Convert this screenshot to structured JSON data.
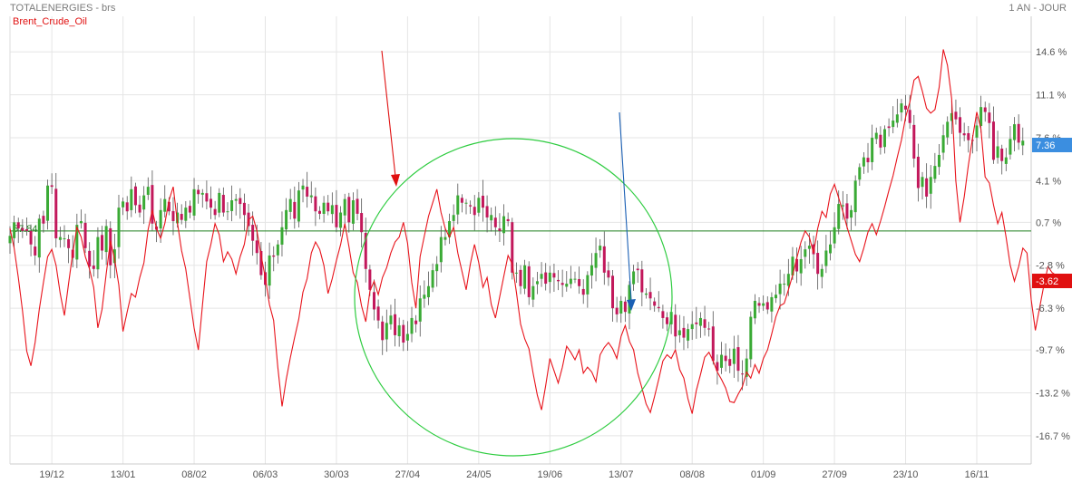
{
  "header": {
    "title_left": "TOTALENERGIES - brs",
    "title_right": "1 AN - JOUR",
    "series_label": "Brent_Crude_Oil"
  },
  "colors": {
    "series_line": "#e8141c",
    "candle_up": "#3aaa35",
    "candle_down": "#c2185b",
    "reference_line": "#1e7f1e",
    "grid": "#e5e5e5",
    "circle": "#2ecc40",
    "arrow_red": "#e01010",
    "arrow_blue": "#1a5fb4",
    "badge_last": "#3b8ee0",
    "badge_series": "#e01010"
  },
  "chart_data": {
    "type": "line",
    "title": "TOTALENERGIES - brs",
    "period": "1 AN - JOUR",
    "ylim": [
      -19.0,
      17.5
    ],
    "y_ticks": [
      14.6,
      11.1,
      7.6,
      4.1,
      0.7,
      -2.8,
      -6.3,
      -9.7,
      -13.2,
      -16.7
    ],
    "y_tick_labels": [
      "14.6 %",
      "11.1 %",
      "7.6 %",
      "4.1 %",
      "0.7 %",
      "-2.8 %",
      "-6.3 %",
      "-9.7 %",
      "-13.2 %",
      "-16.7 %"
    ],
    "x_ticks": [
      "19/12",
      "13/01",
      "08/02",
      "06/03",
      "30/03",
      "27/04",
      "24/05",
      "19/06",
      "13/07",
      "08/08",
      "01/09",
      "27/09",
      "23/10",
      "16/11"
    ],
    "x_tick_positions": [
      10,
      27,
      44,
      61,
      78,
      95,
      112,
      129,
      146,
      163,
      180,
      197,
      214,
      231
    ],
    "x_max": 244,
    "reference_level": 0.0,
    "reference_label": "57.84",
    "last_values": {
      "TOTALENERGIES": "7.36",
      "Brent_Crude_Oil": "-3.62"
    },
    "series": [
      {
        "name": "TOTALENERGIES",
        "style": "candlestick",
        "close": [
          -0.4,
          0.7,
          0.2,
          0.0,
          0.0,
          -1.1,
          -2.0,
          1.0,
          0.6,
          3.7,
          3.6,
          -0.6,
          -0.5,
          -0.6,
          -1.4,
          -2.2,
          0.5,
          0.8,
          -1.4,
          -2.9,
          -3.1,
          -0.5,
          -1.6,
          0.4,
          -2.8,
          -1.5,
          1.9,
          2.4,
          1.6,
          3.4,
          2.1,
          1.5,
          2.9,
          3.6,
          0.6,
          0.1,
          1.7,
          2.6,
          1.6,
          0.8,
          1.5,
          0.9,
          1.9,
          1.5,
          3.4,
          3.0,
          3.1,
          2.4,
          1.9,
          1.3,
          3.1,
          1.5,
          1.6,
          2.5,
          2.6,
          2.2,
          1.3,
          0.4,
          -0.8,
          -1.8,
          -3.6,
          -4.4,
          -2.0,
          -2.1,
          -1.1,
          0.3,
          1.7,
          2.6,
          1.0,
          3.3,
          3.7,
          2.8,
          2.9,
          1.6,
          1.4,
          2.3,
          1.6,
          2.1,
          0.3,
          1.5,
          2.6,
          0.7,
          2.5,
          1.4,
          -0.1,
          -3.1,
          -4.8,
          -6.4,
          -7.3,
          -8.9,
          -7.5,
          -6.9,
          -8.5,
          -7.7,
          -9.1,
          -8.4,
          -7.1,
          -7.6,
          -5.5,
          -5.2,
          -4.5,
          -3.2,
          -2.7,
          -0.5,
          -0.5,
          0.8,
          1.3,
          2.9,
          2.3,
          2.3,
          2.0,
          1.3,
          2.7,
          1.9,
          1.1,
          1.3,
          0.3,
          0.0,
          1.2,
          0.8,
          -3.4,
          -3.4,
          -4.5,
          -2.8,
          -5.4,
          -4.5,
          -4.1,
          -3.5,
          -4.3,
          -3.4,
          -3.8,
          -4.1,
          -4.4,
          -4.3,
          -3.9,
          -3.9,
          -4.5,
          -5.2,
          -3.6,
          -2.8,
          -1.8,
          -1.2,
          -3.4,
          -3.8,
          -6.3,
          -6.8,
          -5.7,
          -6.6,
          -4.4,
          -3.3,
          -3.2,
          -5.0,
          -5.1,
          -5.5,
          -6.1,
          -6.3,
          -7.1,
          -7.6,
          -6.6,
          -8.6,
          -8.1,
          -8.7,
          -8.0,
          -7.6,
          -7.6,
          -7.1,
          -7.9,
          -8.0,
          -10.6,
          -11.4,
          -10.1,
          -10.6,
          -11.0,
          -9.6,
          -11.4,
          -11.7,
          -10.4,
          -7.0,
          -5.7,
          -6.1,
          -5.9,
          -6.4,
          -5.4,
          -5.2,
          -4.3,
          -4.3,
          -3.5,
          -2.1,
          -3.3,
          -2.3,
          -1.5,
          -1.2,
          -1.9,
          -3.5,
          -3.1,
          -1.6,
          -1.1,
          0.3,
          2.2,
          2.1,
          1.0,
          1.7,
          4.1,
          5.2,
          6.0,
          5.6,
          7.6,
          8.0,
          6.8,
          8.3,
          8.4,
          9.0,
          9.5,
          10.4,
          9.9,
          8.8,
          5.9,
          3.5,
          4.4,
          2.8,
          4.4,
          5.3,
          6.2,
          7.8,
          8.9,
          9.6,
          9.1,
          8.0,
          7.8,
          7.4,
          7.4,
          8.6,
          10.1,
          9.7,
          8.8,
          5.8,
          6.9,
          5.7,
          6.0,
          7.5,
          8.7,
          7.2,
          7.36
        ],
        "high_low_range": [
          -13.2,
          13.5
        ]
      },
      {
        "name": "Brent_Crude_Oil",
        "style": "line",
        "values": [
          0.2,
          -1.4,
          -3.8,
          -6.5,
          -9.8,
          -11.0,
          -9.1,
          -6.4,
          -4.2,
          -2.1,
          -1.5,
          -2.8,
          -5.1,
          -6.9,
          -4.3,
          -1.8,
          0.3,
          -0.5,
          -2.1,
          -3.1,
          -4.6,
          -7.9,
          -6.4,
          -3.5,
          -0.8,
          -2.3,
          -4.4,
          -8.2,
          -6.6,
          -5.1,
          -5.4,
          -3.8,
          -2.6,
          0.1,
          1.7,
          0.2,
          -0.6,
          0.6,
          2.5,
          3.6,
          0.7,
          -1.6,
          -3.1,
          -5.5,
          -7.9,
          -9.7,
          -6.0,
          -2.5,
          -1.1,
          0.6,
          -0.3,
          -2.5,
          -1.7,
          -2.3,
          -3.5,
          -2.1,
          -1.1,
          0.9,
          1.2,
          0.0,
          -2.0,
          -3.8,
          -6.0,
          -7.3,
          -11.1,
          -14.3,
          -12.1,
          -10.3,
          -8.7,
          -7.2,
          -5.0,
          -3.9,
          -1.8,
          -0.9,
          -1.5,
          -2.8,
          -5.1,
          -3.9,
          -2.4,
          -1.1,
          0.6,
          -1.3,
          -3.4,
          -4.2,
          -6.1,
          -7.4,
          -4.9,
          -4.1,
          -5.2,
          -3.8,
          -3.0,
          -1.8,
          -0.9,
          -0.5,
          0.7,
          -1.0,
          -4.2,
          -6.3,
          -2.1,
          -0.4,
          1.2,
          2.3,
          3.4,
          1.5,
          0.2,
          -0.5,
          0.3,
          -1.8,
          -3.3,
          -4.8,
          -2.7,
          -1.1,
          -2.6,
          -4.6,
          -3.8,
          -6.0,
          -7.1,
          -5.4,
          -3.7,
          -2.0,
          -2.7,
          -5.0,
          -7.6,
          -8.8,
          -9.6,
          -11.6,
          -13.4,
          -14.6,
          -12.6,
          -10.4,
          -11.4,
          -12.4,
          -11.1,
          -9.4,
          -9.9,
          -10.5,
          -9.7,
          -11.6,
          -11.1,
          -11.5,
          -12.3,
          -10.1,
          -9.5,
          -9.1,
          -9.6,
          -10.4,
          -8.6,
          -7.7,
          -9.0,
          -9.7,
          -11.6,
          -12.8,
          -14.1,
          -14.8,
          -13.5,
          -12.1,
          -10.6,
          -10.1,
          -10.4,
          -9.7,
          -11.3,
          -12.0,
          -13.7,
          -14.9,
          -13.0,
          -11.7,
          -10.3,
          -9.9,
          -10.6,
          -11.5,
          -12.1,
          -12.8,
          -13.9,
          -14.0,
          -13.3,
          -12.7,
          -11.5,
          -12.0,
          -10.9,
          -11.6,
          -10.4,
          -9.7,
          -8.4,
          -7.0,
          -6.1,
          -5.9,
          -4.8,
          -3.6,
          -2.2,
          -0.9,
          0.0,
          -0.5,
          -1.8,
          0.2,
          1.6,
          1.1,
          3.0,
          3.8,
          2.7,
          1.6,
          0.3,
          -0.8,
          -1.9,
          -2.5,
          -1.4,
          -0.1,
          0.6,
          -0.3,
          0.8,
          2.0,
          3.3,
          4.5,
          6.0,
          7.4,
          9.3,
          10.5,
          12.3,
          12.6,
          11.4,
          10.0,
          9.6,
          9.9,
          11.7,
          14.8,
          13.5,
          10.8,
          4.1,
          0.7,
          2.8,
          5.4,
          7.6,
          9.7,
          8.3,
          4.4,
          3.9,
          2.1,
          0.6,
          1.5,
          -0.5,
          -2.8,
          -4.1,
          -2.9,
          -1.4,
          -1.8,
          -5.6,
          -8.1,
          -6.3,
          -4.5,
          -2.9,
          -3.4,
          -3.62
        ]
      }
    ]
  },
  "annotations": [
    {
      "type": "circle",
      "name": "highlight-circle"
    },
    {
      "type": "arrow",
      "name": "red-arrow"
    },
    {
      "type": "arrow",
      "name": "blue-arrow"
    }
  ]
}
